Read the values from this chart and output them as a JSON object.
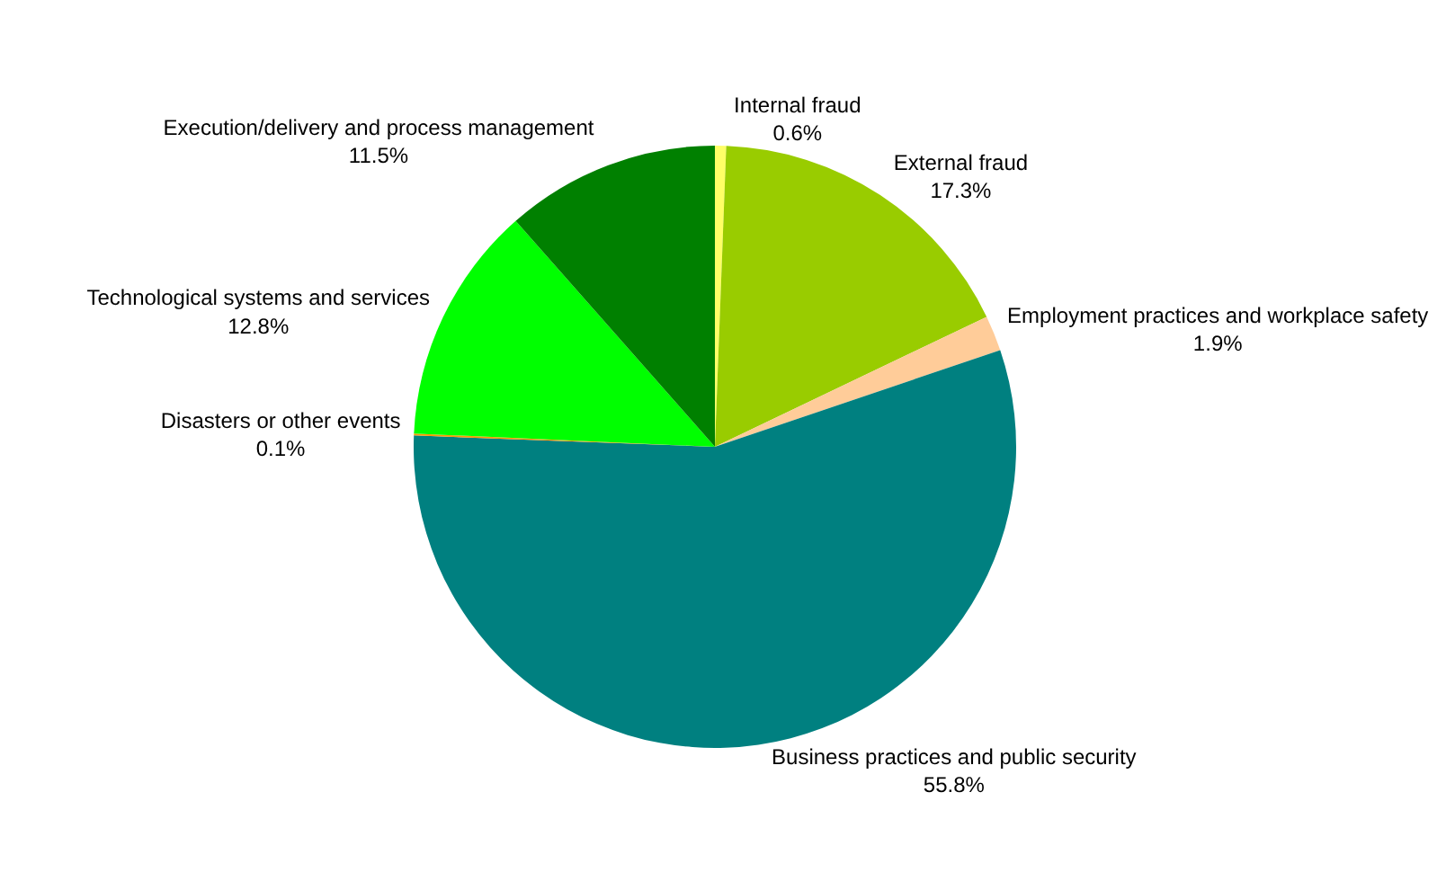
{
  "chart_data": {
    "type": "pie",
    "categories": [
      "Internal fraud",
      "External fraud",
      "Employment practices and workplace safety",
      "Business practices and public security",
      "Disasters or other events",
      "Technological systems and services",
      "Execution/delivery and process management"
    ],
    "values": [
      0.6,
      17.3,
      1.9,
      55.8,
      0.1,
      12.8,
      11.5
    ],
    "value_labels": [
      "0.6%",
      "17.3%",
      "1.9%",
      "55.8%",
      "0.1%",
      "12.8%",
      "11.5%"
    ],
    "colors": [
      "#ffff66",
      "#99cc00",
      "#ffcc99",
      "#008080",
      "#ff9900",
      "#00ff00",
      "#008000"
    ],
    "legend": false
  }
}
